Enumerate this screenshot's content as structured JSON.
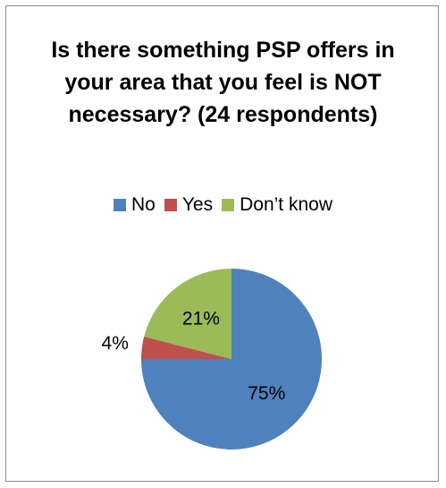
{
  "chart_data": {
    "type": "pie",
    "title": "Is there something PSP offers in your area that you feel is NOT necessary? (24 respondents)",
    "categories": [
      "No",
      "Yes",
      "Don’t know"
    ],
    "values": [
      75,
      4,
      21
    ],
    "labels": [
      "75%",
      "4%",
      "21%"
    ],
    "colors": [
      "#4F81BD",
      "#C0504D",
      "#9BBB59"
    ],
    "legend_position": "top",
    "start_angle": "12 o'clock, clockwise"
  }
}
